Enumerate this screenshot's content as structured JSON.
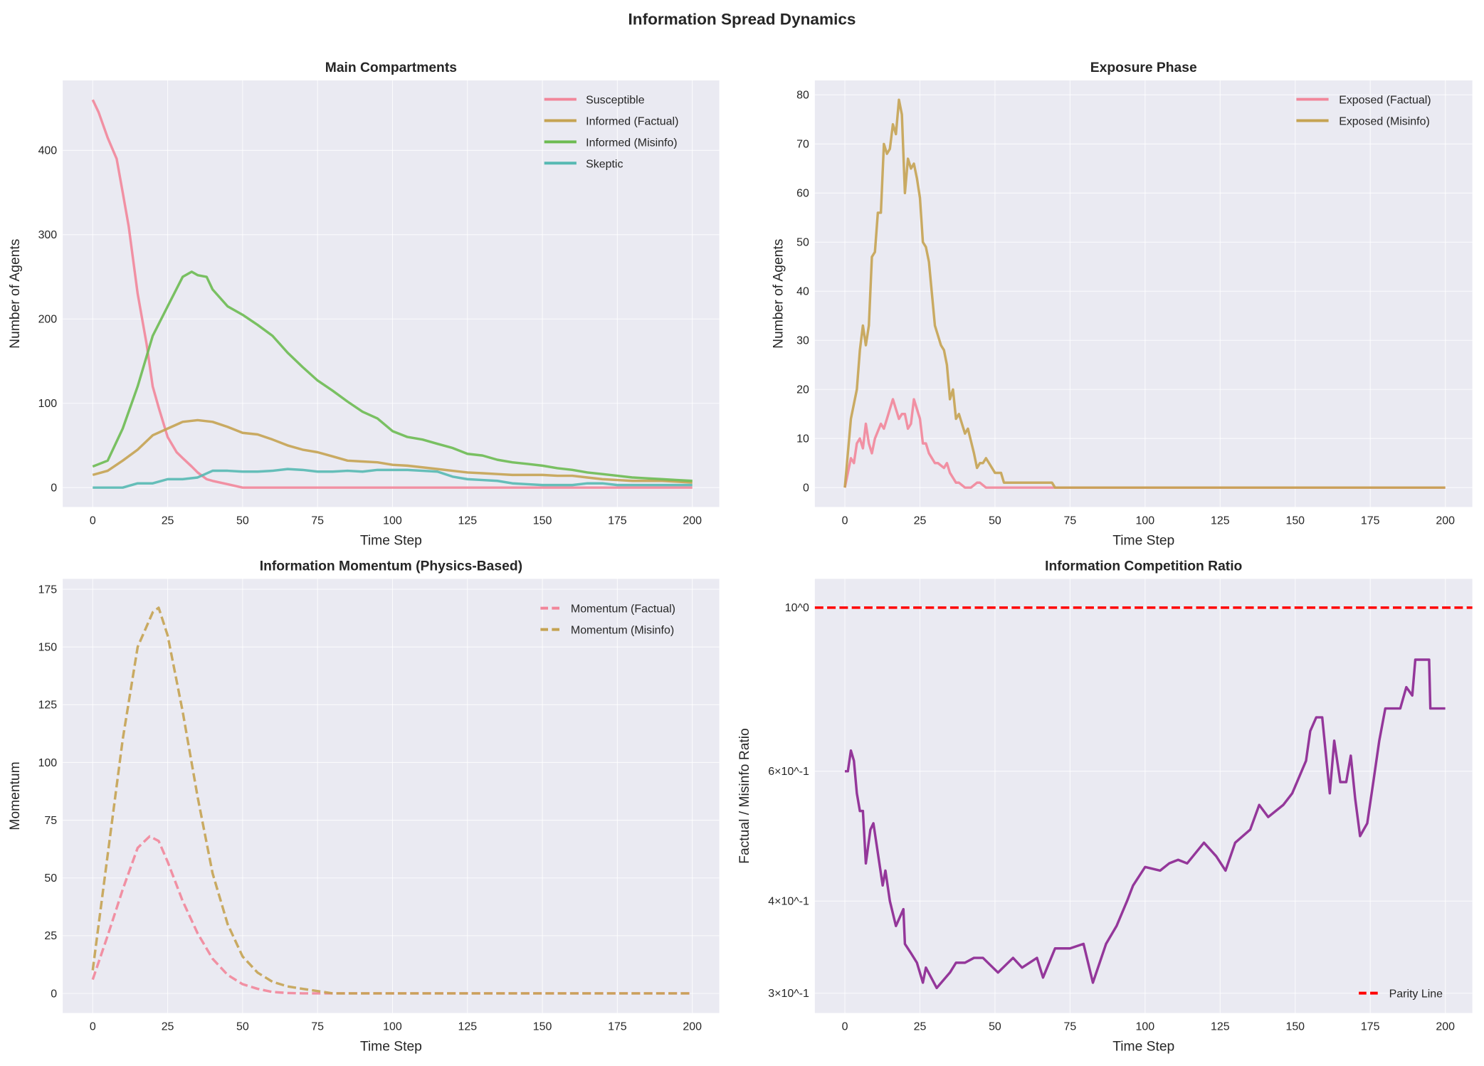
{
  "suptitle": "Information Spread Dynamics",
  "chart_data": [
    {
      "type": "line",
      "title": "Main Compartments",
      "xlabel": "Time Step",
      "ylabel": "Number of Agents",
      "xlim": [
        -10,
        209
      ],
      "ylim": [
        -23,
        483
      ],
      "yscale": "linear",
      "xticks": [
        0,
        25,
        50,
        75,
        100,
        125,
        150,
        175,
        200
      ],
      "xtick_labels": [
        "0",
        "25",
        "50",
        "75",
        "100",
        "125",
        "150",
        "175",
        "200"
      ],
      "yticks": [
        0,
        100,
        200,
        300,
        400
      ],
      "ytick_labels": [
        "0",
        "100",
        "200",
        "300",
        "400"
      ],
      "grid": true,
      "legend": "upper right",
      "series": [
        {
          "name": "Susceptible",
          "color": "#f2869a",
          "style": "solid",
          "x": [
            0,
            2,
            5,
            8,
            10,
            12,
            15,
            18,
            20,
            22,
            25,
            28,
            30,
            33,
            35,
            38,
            40,
            45,
            50,
            200
          ],
          "y": [
            460,
            445,
            415,
            390,
            350,
            310,
            230,
            170,
            120,
            95,
            60,
            42,
            35,
            25,
            18,
            10,
            8,
            4,
            0,
            0
          ]
        },
        {
          "name": "Informed (Factual)",
          "color": "#c5a352",
          "style": "solid",
          "x": [
            0,
            5,
            10,
            15,
            20,
            25,
            30,
            35,
            40,
            45,
            50,
            55,
            60,
            65,
            70,
            75,
            80,
            85,
            90,
            95,
            100,
            105,
            110,
            115,
            120,
            125,
            130,
            135,
            140,
            145,
            150,
            155,
            160,
            165,
            170,
            175,
            180,
            185,
            190,
            195,
            200
          ],
          "y": [
            15,
            20,
            32,
            45,
            62,
            70,
            78,
            80,
            78,
            72,
            65,
            63,
            57,
            50,
            45,
            42,
            37,
            32,
            31,
            30,
            27,
            26,
            24,
            22,
            20,
            18,
            17,
            16,
            15,
            15,
            15,
            14,
            14,
            12,
            10,
            9,
            8,
            8,
            8,
            7,
            6
          ]
        },
        {
          "name": "Informed (Misinfo)",
          "color": "#6dbb52",
          "style": "solid",
          "x": [
            0,
            5,
            10,
            15,
            20,
            25,
            30,
            33,
            35,
            38,
            40,
            45,
            50,
            55,
            60,
            65,
            70,
            75,
            80,
            85,
            90,
            95,
            100,
            105,
            110,
            115,
            120,
            125,
            130,
            135,
            140,
            145,
            150,
            155,
            160,
            165,
            170,
            175,
            180,
            185,
            190,
            195,
            200
          ],
          "y": [
            25,
            32,
            70,
            120,
            180,
            215,
            250,
            256,
            252,
            250,
            235,
            215,
            205,
            193,
            180,
            160,
            143,
            127,
            115,
            102,
            90,
            82,
            67,
            60,
            57,
            52,
            47,
            40,
            38,
            33,
            30,
            28,
            26,
            23,
            21,
            18,
            16,
            14,
            12,
            11,
            10,
            9,
            8
          ]
        },
        {
          "name": "Skeptic",
          "color": "#57b9b3",
          "style": "solid",
          "x": [
            0,
            10,
            15,
            20,
            25,
            30,
            35,
            40,
            45,
            50,
            55,
            60,
            65,
            70,
            75,
            80,
            85,
            90,
            95,
            100,
            105,
            110,
            115,
            120,
            125,
            130,
            135,
            140,
            145,
            150,
            155,
            160,
            165,
            170,
            175,
            180,
            185,
            190,
            195,
            200
          ],
          "y": [
            0,
            0,
            5,
            5,
            10,
            10,
            12,
            20,
            20,
            19,
            19,
            20,
            22,
            21,
            19,
            19,
            20,
            19,
            21,
            21,
            21,
            20,
            19,
            13,
            10,
            9,
            8,
            5,
            4,
            3,
            3,
            3,
            5,
            5,
            3,
            3,
            3,
            3,
            3,
            3
          ]
        }
      ]
    },
    {
      "type": "line",
      "title": "Exposure Phase",
      "xlabel": "Time Step",
      "ylabel": "Number of Agents",
      "xlim": [
        -10,
        209
      ],
      "ylim": [
        -3.95,
        82.95
      ],
      "yscale": "linear",
      "xticks": [
        0,
        25,
        50,
        75,
        100,
        125,
        150,
        175,
        200
      ],
      "xtick_labels": [
        "0",
        "25",
        "50",
        "75",
        "100",
        "125",
        "150",
        "175",
        "200"
      ],
      "yticks": [
        0,
        10,
        20,
        30,
        40,
        50,
        60,
        70,
        80
      ],
      "ytick_labels": [
        "0",
        "10",
        "20",
        "30",
        "40",
        "50",
        "60",
        "70",
        "80"
      ],
      "grid": true,
      "legend": "upper right",
      "series": [
        {
          "name": "Exposed (Factual)",
          "color": "#f2869a",
          "style": "solid",
          "x": [
            0,
            2,
            3,
            4,
            5,
            6,
            7,
            8,
            9,
            10,
            12,
            13,
            14,
            15,
            16,
            17,
            18,
            19,
            20,
            21,
            22,
            23,
            25,
            26,
            27,
            28,
            30,
            31,
            33,
            34,
            35,
            36,
            37,
            38,
            40,
            42,
            44,
            45,
            47,
            200
          ],
          "y": [
            0,
            6,
            5,
            9,
            10,
            8,
            13,
            9,
            7,
            10,
            13,
            12,
            14,
            16,
            18,
            16,
            14,
            15,
            15,
            12,
            13,
            18,
            14,
            9,
            9,
            7,
            5,
            5,
            4,
            5,
            3,
            2,
            1,
            1,
            0,
            0,
            1,
            1,
            0,
            0
          ]
        },
        {
          "name": "Exposed (Misinfo)",
          "color": "#c5a352",
          "style": "solid",
          "x": [
            0,
            2,
            4,
            5,
            6,
            7,
            8,
            9,
            10,
            11,
            12,
            13,
            14,
            15,
            16,
            17,
            18,
            19,
            20,
            21,
            22,
            23,
            24,
            25,
            26,
            27,
            28,
            30,
            32,
            33,
            34,
            35,
            36,
            37,
            38,
            40,
            41,
            43,
            44,
            45,
            46,
            47,
            48,
            50,
            52,
            53,
            69,
            70,
            200
          ],
          "y": [
            0,
            14,
            20,
            28,
            33,
            29,
            33,
            47,
            48,
            56,
            56,
            70,
            68,
            69,
            74,
            72,
            79,
            76,
            60,
            67,
            65,
            66,
            63,
            59,
            50,
            49,
            46,
            33,
            29,
            28,
            25,
            18,
            20,
            14,
            15,
            11,
            12,
            7,
            4,
            5,
            5,
            6,
            5,
            3,
            3,
            1,
            1,
            0,
            0
          ]
        }
      ]
    },
    {
      "type": "line",
      "title": "Information Momentum (Physics-Based)",
      "xlabel": "Time Step",
      "ylabel": "Momentum",
      "xlim": [
        -10,
        209
      ],
      "ylim": [
        -8.5,
        179.5
      ],
      "yscale": "linear",
      "xticks": [
        0,
        25,
        50,
        75,
        100,
        125,
        150,
        175,
        200
      ],
      "xtick_labels": [
        "0",
        "25",
        "50",
        "75",
        "100",
        "125",
        "150",
        "175",
        "200"
      ],
      "yticks": [
        0,
        25,
        50,
        75,
        100,
        125,
        150,
        175
      ],
      "ytick_labels": [
        "0",
        "25",
        "50",
        "75",
        "100",
        "125",
        "150",
        "175"
      ],
      "grid": true,
      "legend": "upper right",
      "series": [
        {
          "name": "Momentum (Factual)",
          "color": "#f2869a",
          "style": "dashed",
          "x": [
            0,
            5,
            10,
            15,
            19,
            22,
            25,
            30,
            35,
            40,
            45,
            50,
            55,
            60,
            65,
            70,
            200
          ],
          "y": [
            6,
            25,
            45,
            63,
            68,
            66,
            57,
            40,
            26,
            15,
            8,
            4,
            2,
            0.6,
            0.2,
            0,
            0
          ]
        },
        {
          "name": "Momentum (Misinfo)",
          "color": "#c5a352",
          "style": "dashed",
          "x": [
            0,
            5,
            10,
            15,
            20,
            22,
            25,
            30,
            35,
            40,
            45,
            50,
            55,
            60,
            65,
            70,
            75,
            80,
            200
          ],
          "y": [
            10,
            60,
            110,
            150,
            165,
            167,
            155,
            122,
            85,
            52,
            30,
            16,
            9,
            5,
            3,
            2,
            1,
            0,
            0
          ]
        }
      ]
    },
    {
      "type": "line",
      "title": "Information Competition Ratio",
      "xlabel": "Time Step",
      "ylabel": "Factual / Misinfo Ratio",
      "xlim": [
        -10,
        209
      ],
      "ylim": [
        0.282,
        1.094
      ],
      "yscale": "log",
      "xticks": [
        0,
        25,
        50,
        75,
        100,
        125,
        150,
        175,
        200
      ],
      "xtick_labels": [
        "0",
        "25",
        "50",
        "75",
        "100",
        "125",
        "150",
        "175",
        "200"
      ],
      "yticks": [
        1,
        0.6,
        0.4,
        0.3
      ],
      "ytick_labels": [
        "10^0",
        "6×10^-1",
        "4×10^-1",
        "3×10^-1"
      ],
      "grid": true,
      "legend": "lower right",
      "series": [
        {
          "name": "",
          "color": "#8b2490",
          "style": "solid",
          "x": [
            0,
            1,
            2,
            3,
            4,
            5,
            6,
            7,
            8.5,
            9.5,
            12.6,
            13.5,
            15,
            17,
            19.5,
            20,
            22,
            24,
            26,
            27,
            30.6,
            35,
            37,
            40,
            43,
            46,
            51,
            56,
            59,
            64,
            66,
            70,
            75,
            79.5,
            82.6,
            87,
            90.5,
            94,
            96,
            100,
            105,
            108,
            111,
            114,
            119.6,
            123.7,
            126.8,
            130,
            135,
            138,
            141,
            146,
            149,
            153.6,
            155,
            157,
            159,
            161.5,
            163,
            165,
            167,
            168.5,
            170,
            171.6,
            174,
            176,
            178,
            180,
            185,
            187,
            189,
            190,
            194.6,
            195,
            200
          ],
          "y": [
            0.6,
            0.6,
            0.64,
            0.62,
            0.56,
            0.53,
            0.53,
            0.45,
            0.5,
            0.51,
            0.42,
            0.44,
            0.4,
            0.37,
            0.39,
            0.35,
            0.34,
            0.33,
            0.31,
            0.325,
            0.305,
            0.32,
            0.33,
            0.33,
            0.335,
            0.335,
            0.32,
            0.335,
            0.325,
            0.335,
            0.315,
            0.345,
            0.345,
            0.35,
            0.31,
            0.35,
            0.37,
            0.4,
            0.42,
            0.445,
            0.44,
            0.45,
            0.455,
            0.45,
            0.48,
            0.46,
            0.44,
            0.48,
            0.5,
            0.54,
            0.52,
            0.54,
            0.56,
            0.62,
            0.68,
            0.71,
            0.71,
            0.56,
            0.66,
            0.58,
            0.58,
            0.63,
            0.55,
            0.49,
            0.51,
            0.58,
            0.66,
            0.73,
            0.73,
            0.78,
            0.76,
            0.85,
            0.85,
            0.73,
            0.73
          ]
        },
        {
          "name": "Parity Line",
          "color": "#ff0000",
          "style": "dashed",
          "x": [
            -10,
            209
          ],
          "y": [
            1,
            1
          ]
        }
      ]
    }
  ]
}
